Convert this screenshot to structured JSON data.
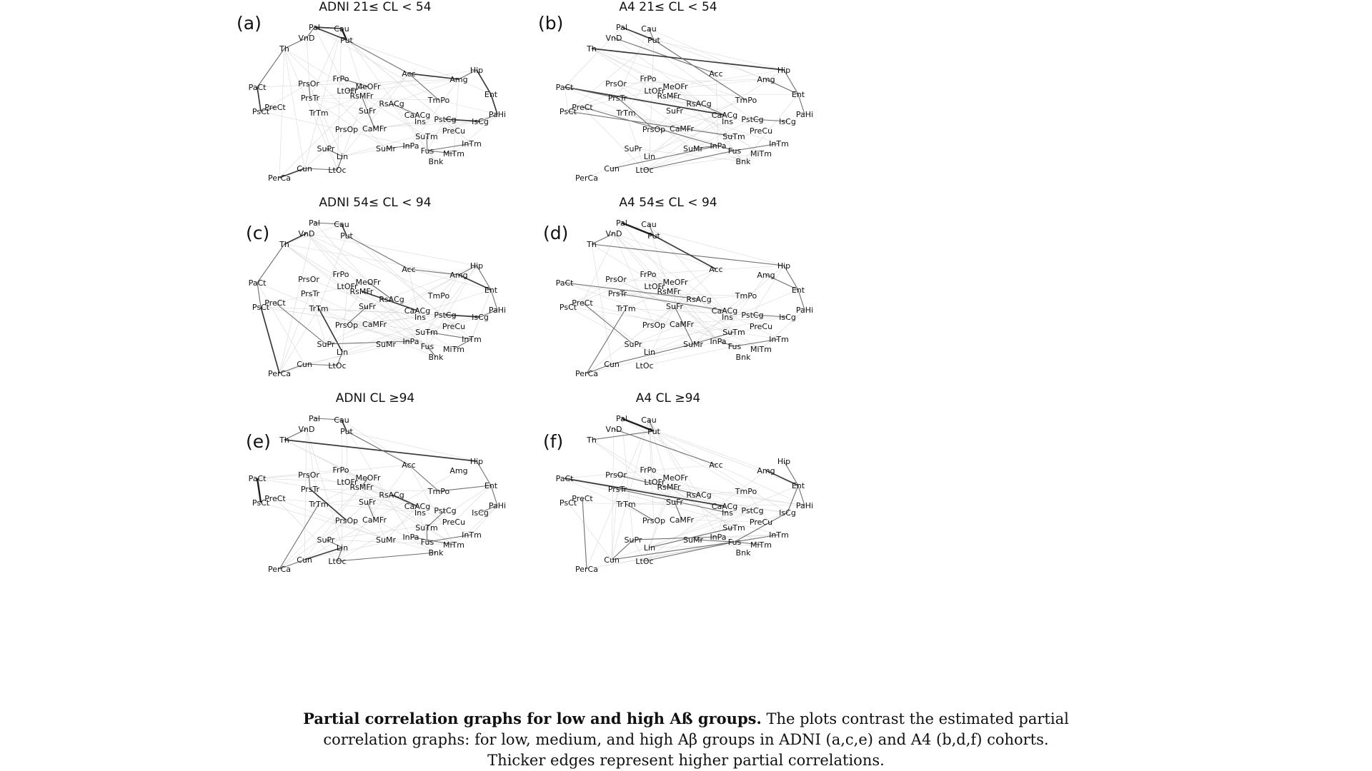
{
  "panels": [
    {
      "label": "(a)",
      "title": "ADNI 21≤  CL  < 54",
      "edges": [
        [
          "Pal",
          "Cau",
          3
        ],
        [
          "Cau",
          "Put",
          4
        ],
        [
          "Pal",
          "Put",
          3
        ],
        [
          "VnD",
          "Pal",
          2
        ],
        [
          "VnD",
          "Th",
          2
        ],
        [
          "Th",
          "PaCt",
          2
        ],
        [
          "PaCt",
          "PsCt",
          3
        ],
        [
          "PsCt",
          "PreCt",
          2
        ],
        [
          "Put",
          "Acc",
          2
        ],
        [
          "Acc",
          "Amg",
          3
        ],
        [
          "Amg",
          "Hip",
          2
        ],
        [
          "Hip",
          "Ent",
          3
        ],
        [
          "Ent",
          "PaHi",
          3
        ],
        [
          "PaHi",
          "IsCg",
          2
        ],
        [
          "IsCg",
          "PstCg",
          3
        ],
        [
          "Acc",
          "TmPo",
          2
        ],
        [
          "PrsOr",
          "PrsTr",
          2
        ],
        [
          "LtOFr",
          "MeOFr",
          2
        ],
        [
          "FrPo",
          "MeOFr",
          2
        ],
        [
          "RsMFr",
          "SuFr",
          2
        ],
        [
          "RsACg",
          "CaACg",
          2
        ],
        [
          "SuFr",
          "CaMFr",
          2
        ],
        [
          "SuTm",
          "Fus",
          2
        ],
        [
          "InPa",
          "SuMr",
          2
        ],
        [
          "SuPr",
          "Lin",
          2
        ],
        [
          "Lin",
          "LtOc",
          2
        ],
        [
          "Cun",
          "LtOc",
          2
        ],
        [
          "Cun",
          "PerCa",
          3
        ],
        [
          "Lin",
          "SuPr",
          2
        ],
        [
          "Fus",
          "InTm",
          2
        ],
        [
          "MiTm",
          "Fus",
          2
        ]
      ]
    },
    {
      "label": "(b)",
      "title": "A4 21≤  CL  < 54",
      "edges": [
        [
          "Pal",
          "Put",
          3
        ],
        [
          "Cau",
          "Put",
          2
        ],
        [
          "VnD",
          "Acc",
          2
        ],
        [
          "Th",
          "Hip",
          3
        ],
        [
          "Put",
          "TmPo",
          2
        ],
        [
          "Hip",
          "Ent",
          2
        ],
        [
          "Ent",
          "PaHi",
          2
        ],
        [
          "PaCt",
          "CaACg",
          3
        ],
        [
          "PaCt",
          "PrsTr",
          2
        ],
        [
          "PrsTr",
          "PrsOp",
          2
        ],
        [
          "PsCt",
          "SuTm",
          2
        ],
        [
          "PreCt",
          "Fus",
          2
        ],
        [
          "RsMFr",
          "RsACg",
          2
        ],
        [
          "RsACg",
          "CaACg",
          2
        ],
        [
          "Cun",
          "InPa",
          2
        ],
        [
          "LtOc",
          "Fus",
          2
        ],
        [
          "SuMr",
          "InPa",
          2
        ],
        [
          "Fus",
          "InTm",
          2
        ],
        [
          "PstCg",
          "IsCg",
          2
        ],
        [
          "Amg",
          "Ent",
          2
        ]
      ]
    },
    {
      "label": "(c)",
      "title": "ADNI 54≤  CL  < 94",
      "edges": [
        [
          "Pal",
          "Cau",
          2
        ],
        [
          "Cau",
          "Put",
          3
        ],
        [
          "VnD",
          "Th",
          3
        ],
        [
          "Th",
          "PaCt",
          2
        ],
        [
          "PaCt",
          "PsCt",
          2
        ],
        [
          "PsCt",
          "PerCa",
          3
        ],
        [
          "Put",
          "Acc",
          2
        ],
        [
          "Acc",
          "Amg",
          2
        ],
        [
          "Amg",
          "Hip",
          2
        ],
        [
          "Amg",
          "Ent",
          3
        ],
        [
          "Hip",
          "Ent",
          2
        ],
        [
          "Ent",
          "PaHi",
          2
        ],
        [
          "PaHi",
          "IsCg",
          2
        ],
        [
          "PstCg",
          "IsCg",
          3
        ],
        [
          "TrTm",
          "Lin",
          3
        ],
        [
          "Lin",
          "LtOc",
          2
        ],
        [
          "Cun",
          "LtOc",
          2
        ],
        [
          "Cun",
          "PerCa",
          2
        ],
        [
          "SuPr",
          "InPa",
          2
        ],
        [
          "SuTm",
          "InTm",
          2
        ],
        [
          "RsMFr",
          "CaACg",
          3
        ],
        [
          "MeOFr",
          "RsACg",
          2
        ],
        [
          "SuFr",
          "PrsOp",
          2
        ],
        [
          "Fus",
          "Bnk",
          2
        ],
        [
          "MiTm",
          "InTm",
          2
        ],
        [
          "PreCt",
          "SuPr",
          2
        ]
      ]
    },
    {
      "label": "(d)",
      "title": "A4 54≤  CL  < 94",
      "edges": [
        [
          "Pal",
          "Put",
          4
        ],
        [
          "Cau",
          "Put",
          2
        ],
        [
          "VnD",
          "Th",
          2
        ],
        [
          "Th",
          "Hip",
          2
        ],
        [
          "Put",
          "Acc",
          3
        ],
        [
          "Amg",
          "Ent",
          2
        ],
        [
          "Hip",
          "Ent",
          2
        ],
        [
          "Ent",
          "PaHi",
          2
        ],
        [
          "PaCt",
          "RsACg",
          2
        ],
        [
          "PrsTr",
          "CaACg",
          2
        ],
        [
          "PreCt",
          "SuPr",
          2
        ],
        [
          "TrTm",
          "PerCa",
          2
        ],
        [
          "Cun",
          "PerCa",
          2
        ],
        [
          "Cun",
          "SuMr",
          2
        ],
        [
          "SuMr",
          "SuTm",
          2
        ],
        [
          "InPa",
          "Fus",
          2
        ],
        [
          "Fus",
          "InTm",
          2
        ],
        [
          "SuFr",
          "SuMr",
          2
        ],
        [
          "PstCg",
          "IsCg",
          2
        ]
      ]
    },
    {
      "label": "(e)",
      "title": "ADNI CL  ≥94",
      "edges": [
        [
          "Pal",
          "Cau",
          2
        ],
        [
          "Cau",
          "Put",
          3
        ],
        [
          "VnD",
          "Th",
          2
        ],
        [
          "Th",
          "Hip",
          3
        ],
        [
          "Put",
          "Acc",
          2
        ],
        [
          "Acc",
          "TmPo",
          2
        ],
        [
          "TmPo",
          "Ent",
          2
        ],
        [
          "Hip",
          "Ent",
          2
        ],
        [
          "Ent",
          "PaHi",
          2
        ],
        [
          "PaHi",
          "IsCg",
          2
        ],
        [
          "PaCt",
          "PsCt",
          4
        ],
        [
          "PrsOr",
          "PrsTr",
          2
        ],
        [
          "PrsTr",
          "PrsOp",
          3
        ],
        [
          "TrTm",
          "PerCa",
          2
        ],
        [
          "PerCa",
          "Cun",
          2
        ],
        [
          "Cun",
          "Lin",
          3
        ],
        [
          "Lin",
          "LtOc",
          2
        ],
        [
          "LtOc",
          "Bnk",
          2
        ],
        [
          "SuPr",
          "Lin",
          2
        ],
        [
          "RsACg",
          "CaACg",
          3
        ],
        [
          "MeOFr",
          "RsMFr",
          2
        ],
        [
          "SuTm",
          "Fus",
          2
        ],
        [
          "Fus",
          "InTm",
          2
        ],
        [
          "InPa",
          "MiTm",
          2
        ],
        [
          "PstCg",
          "SuTm",
          2
        ],
        [
          "CaMFr",
          "SuFr",
          2
        ]
      ]
    },
    {
      "label": "(f)",
      "title": "A4 CL  ≥94",
      "edges": [
        [
          "Pal",
          "Put",
          4
        ],
        [
          "Cau",
          "Put",
          2
        ],
        [
          "VnD",
          "Acc",
          2
        ],
        [
          "Th",
          "Put",
          2
        ],
        [
          "Amg",
          "Ent",
          3
        ],
        [
          "Hip",
          "Ent",
          2
        ],
        [
          "PaHi",
          "Ent",
          2
        ],
        [
          "PaCt",
          "CaACg",
          3
        ],
        [
          "PrsTr",
          "Ins",
          2
        ],
        [
          "PrsOr",
          "RsACg",
          2
        ],
        [
          "TrTm",
          "PrsOp",
          2
        ],
        [
          "SuPr",
          "InPa",
          2
        ],
        [
          "SuPr",
          "Cun",
          2
        ],
        [
          "Cun",
          "Fus",
          2
        ],
        [
          "Lin",
          "SuTm",
          2
        ],
        [
          "LtOc",
          "Fus",
          2
        ],
        [
          "SuMr",
          "Fus",
          2
        ],
        [
          "Fus",
          "InTm",
          2
        ],
        [
          "Fus",
          "IsCg",
          2
        ],
        [
          "PreCt",
          "PerCa",
          2
        ],
        [
          "SuFr",
          "CaMFr",
          2
        ],
        [
          "MiTm",
          "Fus",
          2
        ],
        [
          "Ent",
          "IsCg",
          2
        ]
      ]
    }
  ],
  "caption": {
    "bold": "Partial correlation graphs for low and high Aß groups.",
    "text": " The plots contrast the estimated partial correlation graphs: for low, medium, and high Aβ groups in ADNI (a,c,e) and A4 (b,d,f) cohorts. Thicker edges represent higher partial correlations."
  },
  "colors": {
    "node_text": "#111111",
    "strong_edge": "#333333",
    "weak_edge": "#cfcfcf"
  }
}
